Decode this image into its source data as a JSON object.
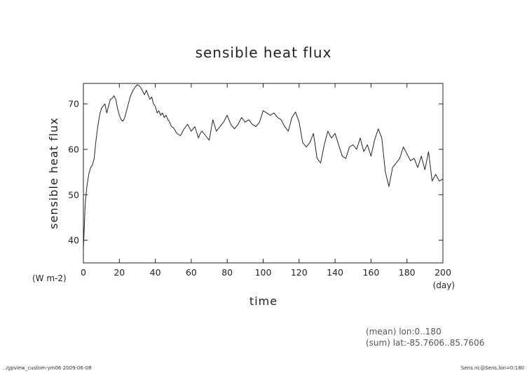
{
  "chart_data": {
    "type": "line",
    "title": "sensible heat flux",
    "xlabel": "time",
    "ylabel": "sensible heat flux",
    "xunit": "(day)",
    "yunit": "(W m-2)",
    "xlim": [
      0,
      200
    ],
    "ylim": [
      35,
      74.5
    ],
    "xticks": [
      0,
      20,
      40,
      60,
      80,
      100,
      120,
      140,
      160,
      180,
      200
    ],
    "yticks": [
      40,
      50,
      60,
      70
    ],
    "grid": false,
    "series": [
      {
        "x": [
          0,
          1,
          2,
          3,
          4,
          5,
          6,
          7,
          8,
          9,
          10,
          11,
          12,
          13,
          14,
          15,
          16,
          17,
          18,
          19,
          20,
          21,
          22,
          23,
          24,
          25,
          26,
          27,
          28,
          29,
          30,
          31,
          32,
          33,
          34,
          35,
          36,
          37,
          38,
          39,
          40,
          41,
          42,
          43,
          44,
          45,
          46,
          47,
          48,
          49,
          50,
          52,
          54,
          56,
          58,
          60,
          62,
          64,
          65,
          66,
          68,
          70,
          72,
          74,
          76,
          78,
          80,
          82,
          84,
          86,
          88,
          90,
          92,
          94,
          96,
          98,
          100,
          102,
          104,
          106,
          108,
          110,
          112,
          114,
          116,
          118,
          120,
          122,
          124,
          126,
          128,
          130,
          132,
          134,
          136,
          138,
          140,
          142,
          144,
          146,
          148,
          150,
          152,
          154,
          156,
          158,
          160,
          162,
          164,
          166,
          168,
          170,
          172,
          174,
          176,
          178,
          180,
          182,
          184,
          186,
          188,
          190,
          192,
          194,
          196,
          198,
          200
        ],
        "values": [
          38,
          48,
          52,
          54.5,
          56,
          56.5,
          58,
          62,
          65,
          67.5,
          69,
          69.5,
          70,
          68,
          69.5,
          71,
          71.2,
          71.8,
          71,
          69,
          67.5,
          66.5,
          66.2,
          67,
          68.5,
          70,
          71.5,
          72.5,
          73.2,
          73.8,
          74.2,
          74,
          73.5,
          72.8,
          72,
          73,
          72,
          71,
          71.5,
          70,
          69.5,
          68,
          68.5,
          67.5,
          68,
          67,
          67.5,
          66.5,
          66,
          65,
          64.8,
          63.5,
          63,
          64.5,
          65.5,
          64,
          65,
          62.5,
          63.5,
          64,
          63,
          62,
          66.5,
          64,
          65,
          66,
          67.5,
          65.5,
          64.5,
          65.5,
          67,
          66,
          66.5,
          65.5,
          65,
          66,
          68.5,
          68,
          67.5,
          68,
          67,
          66.5,
          65,
          64,
          67,
          68.2,
          66,
          61.5,
          60.5,
          61.5,
          63.5,
          58,
          57,
          61,
          64,
          62.5,
          63.5,
          61,
          58.5,
          58,
          60.5,
          61,
          60,
          62.5,
          59.5,
          61,
          58.5,
          62,
          64.5,
          62.5,
          55,
          51.8,
          56,
          57,
          58,
          60.5,
          59,
          57.5,
          58,
          56,
          58.5,
          55.5,
          59.5,
          53,
          54.5,
          53,
          53.5
        ]
      }
    ]
  },
  "annotations": {
    "mean_note": "(mean) lon:0..180",
    "sum_note": "(sum) lat:-85.7606..85.7606"
  },
  "footer": {
    "left": "../gpview_custom-ym06  2009-06-08",
    "right": "Sens.nc@Sens,lon=0:180"
  }
}
